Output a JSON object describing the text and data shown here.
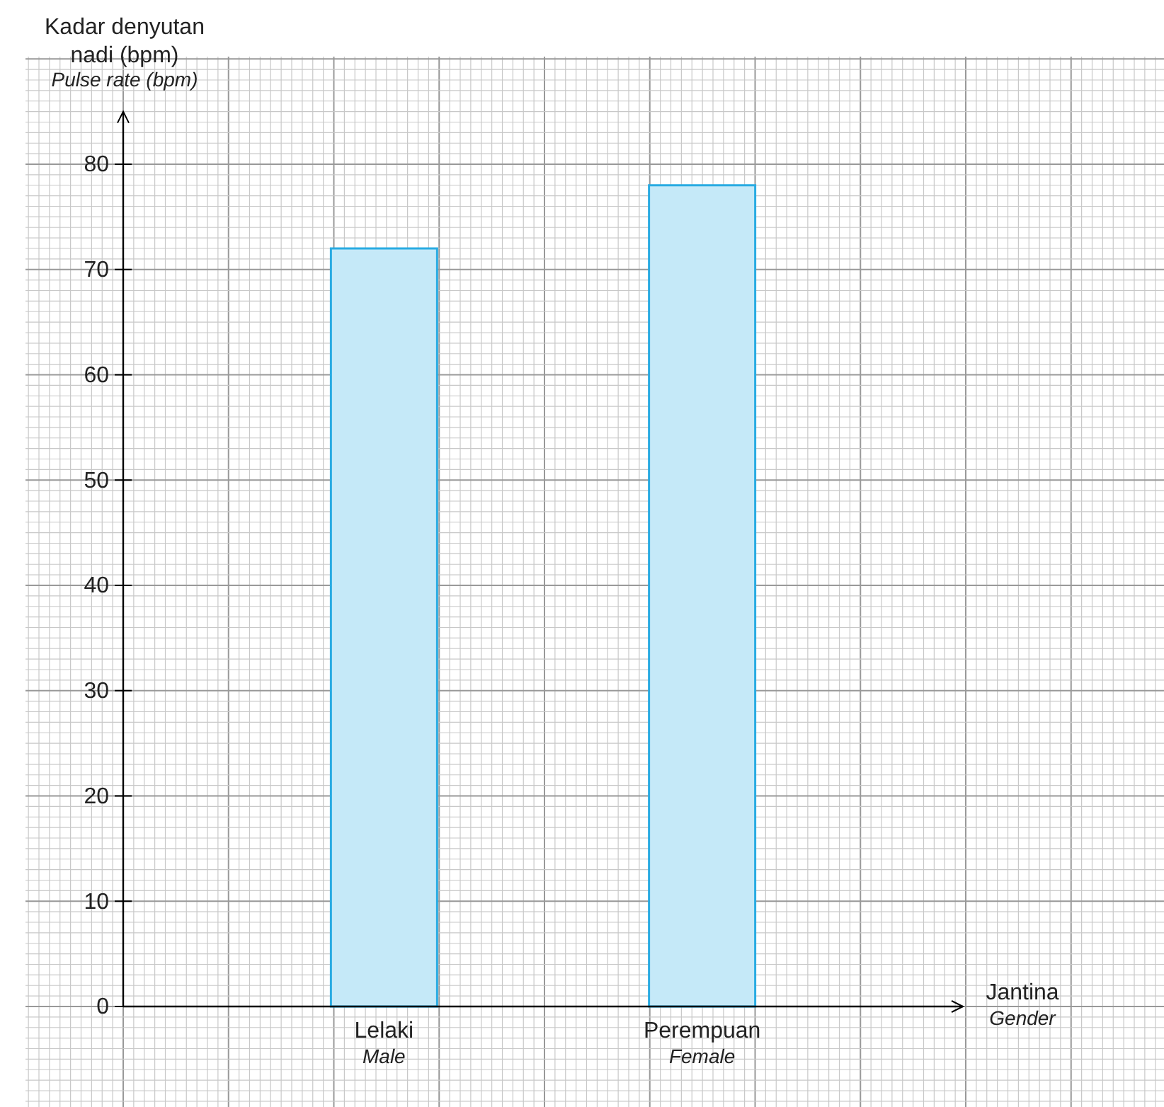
{
  "chart_data": {
    "type": "bar",
    "ylabel": "Kadar denyutan\nnadi (bpm)\nPulse rate (bpm)",
    "xlabel": "Jantina\nGender",
    "categories": [
      "Lelaki\nMale",
      "Perempuan\nFemale"
    ],
    "values": [
      72,
      78
    ],
    "color": "#c5e9f8",
    "ylim": [
      0,
      85
    ],
    "yticks": [
      0,
      10,
      20,
      30,
      40,
      50,
      60,
      70,
      80
    ],
    "grid": true
  }
}
